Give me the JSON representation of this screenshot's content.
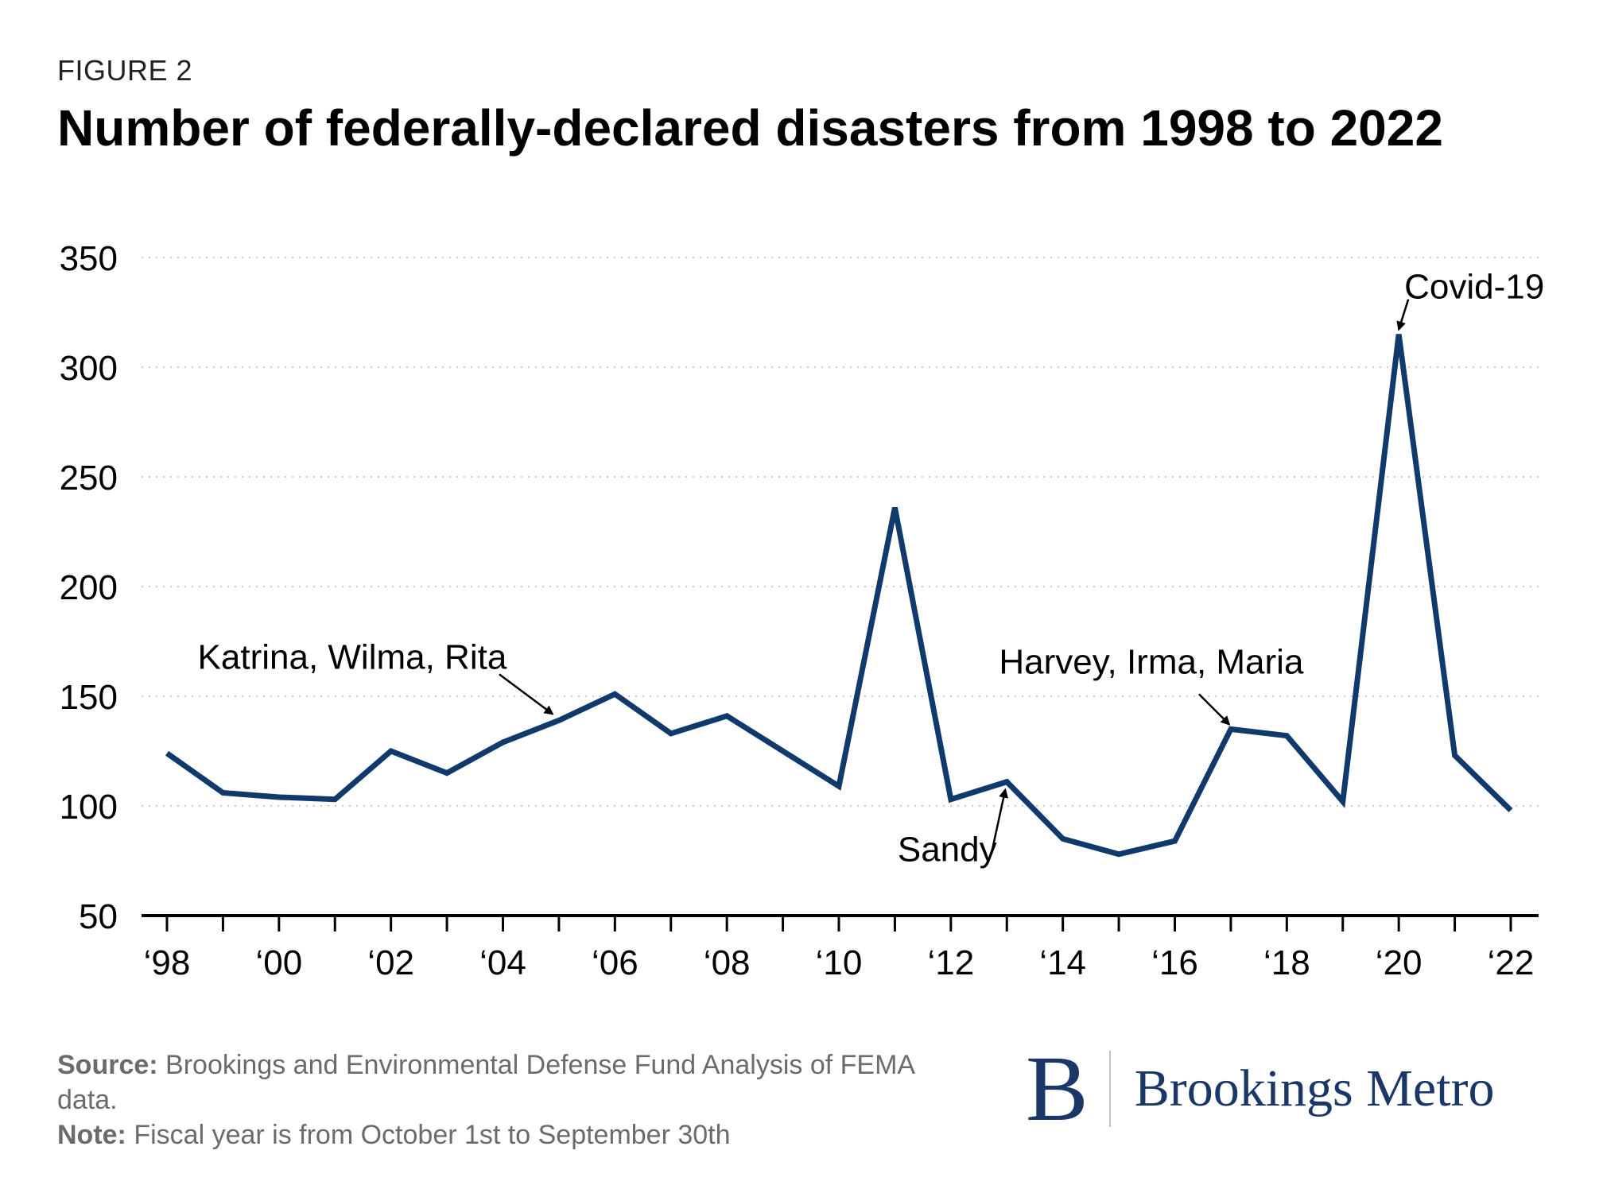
{
  "figure_label": "FIGURE 2",
  "chart_data": {
    "type": "line",
    "title": "Number of federally-declared disasters from 1998 to 2022",
    "xlabel": "",
    "ylabel": "",
    "x": [
      1998,
      1999,
      2000,
      2001,
      2002,
      2003,
      2004,
      2005,
      2006,
      2007,
      2008,
      2009,
      2010,
      2011,
      2012,
      2013,
      2014,
      2015,
      2016,
      2017,
      2018,
      2019,
      2020,
      2021,
      2022
    ],
    "series": [
      {
        "values": [
          124,
          106,
          104,
          103,
          125,
          115,
          129,
          139,
          151,
          133,
          141,
          125,
          109,
          236,
          103,
          111,
          85,
          78,
          84,
          135,
          132,
          102,
          315,
          123,
          98
        ],
        "color": "#0f3a6b"
      }
    ],
    "ylim": [
      50,
      350
    ],
    "yticks": [
      50,
      100,
      150,
      200,
      250,
      300,
      350
    ],
    "ytick_labels": [
      "50",
      "100",
      "150",
      "200",
      "250",
      "300",
      "350"
    ],
    "xlim": [
      1998,
      2022
    ],
    "xticks_labeled": [
      1998,
      2000,
      2002,
      2004,
      2006,
      2008,
      2010,
      2012,
      2014,
      2016,
      2018,
      2020,
      2022
    ],
    "xtick_labels": [
      "‘98",
      "‘00",
      "‘02",
      "‘04",
      "‘06",
      "‘08",
      "‘10",
      "‘12",
      "‘14",
      "‘16",
      "‘18",
      "‘20",
      "‘22"
    ],
    "grid": "horizontal dotted",
    "legend": "none",
    "annotations": [
      {
        "text": "Katrina, Wilma, Rita",
        "x": 2005,
        "y": 139
      },
      {
        "text": "Harvey, Irma, Maria",
        "x": 2017,
        "y": 135
      },
      {
        "text": "Sandy",
        "x": 2013,
        "y": 111
      },
      {
        "text": "Covid-19",
        "x": 2020,
        "y": 315
      }
    ]
  },
  "footer": {
    "source_label": "Source:",
    "source_text": "Brookings and Environmental Defense Fund Analysis of FEMA data.",
    "note_label": "Note:",
    "note_text": "Fiscal year is from October 1st to September 30th"
  },
  "logo": {
    "mark": "B",
    "text": "Brookings Metro",
    "color": "#1b3768"
  }
}
